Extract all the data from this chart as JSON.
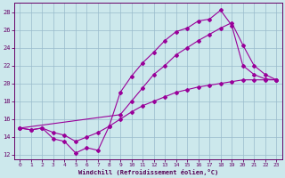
{
  "xlabel": "Windchill (Refroidissement éolien,°C)",
  "background_color": "#cce8ec",
  "line_color": "#990099",
  "grid_color": "#99bbcc",
  "xlim": [
    -0.5,
    23.5
  ],
  "ylim": [
    11.5,
    29
  ],
  "xticks": [
    0,
    1,
    2,
    3,
    4,
    5,
    6,
    7,
    8,
    9,
    10,
    11,
    12,
    13,
    14,
    15,
    16,
    17,
    18,
    19,
    20,
    21,
    22,
    23
  ],
  "yticks": [
    12,
    14,
    16,
    18,
    20,
    22,
    24,
    26,
    28
  ],
  "line1_x": [
    0,
    1,
    2,
    3,
    4,
    5,
    6,
    7,
    8,
    9,
    10,
    11,
    12,
    13,
    14,
    15,
    16,
    17,
    18,
    19,
    20,
    21,
    22,
    23
  ],
  "line1_y": [
    15,
    14.8,
    15,
    13.8,
    13.5,
    12.2,
    12.8,
    12.5,
    15.2,
    19.0,
    20.8,
    22.3,
    23.5,
    24.8,
    25.8,
    26.2,
    27.0,
    27.2,
    28.2,
    26.5,
    22.0,
    21.0,
    20.5,
    20.4
  ],
  "line2_x": [
    0,
    9,
    10,
    11,
    12,
    13,
    14,
    15,
    16,
    17,
    18,
    19,
    20,
    21,
    22,
    23
  ],
  "line2_y": [
    15,
    16.5,
    18.0,
    19.5,
    21.0,
    22.0,
    23.2,
    24.0,
    24.8,
    25.5,
    26.2,
    26.8,
    24.3,
    22.0,
    21.0,
    20.4
  ],
  "line3_x": [
    0,
    1,
    2,
    3,
    4,
    5,
    6,
    7,
    8,
    9,
    10,
    11,
    12,
    13,
    14,
    15,
    16,
    17,
    18,
    19,
    20,
    21,
    22,
    23
  ],
  "line3_y": [
    15,
    14.8,
    15,
    14.5,
    14.2,
    13.5,
    14.0,
    14.5,
    15.2,
    16.0,
    16.8,
    17.5,
    18.0,
    18.5,
    19.0,
    19.3,
    19.6,
    19.8,
    20.0,
    20.2,
    20.4,
    20.4,
    20.4,
    20.4
  ]
}
